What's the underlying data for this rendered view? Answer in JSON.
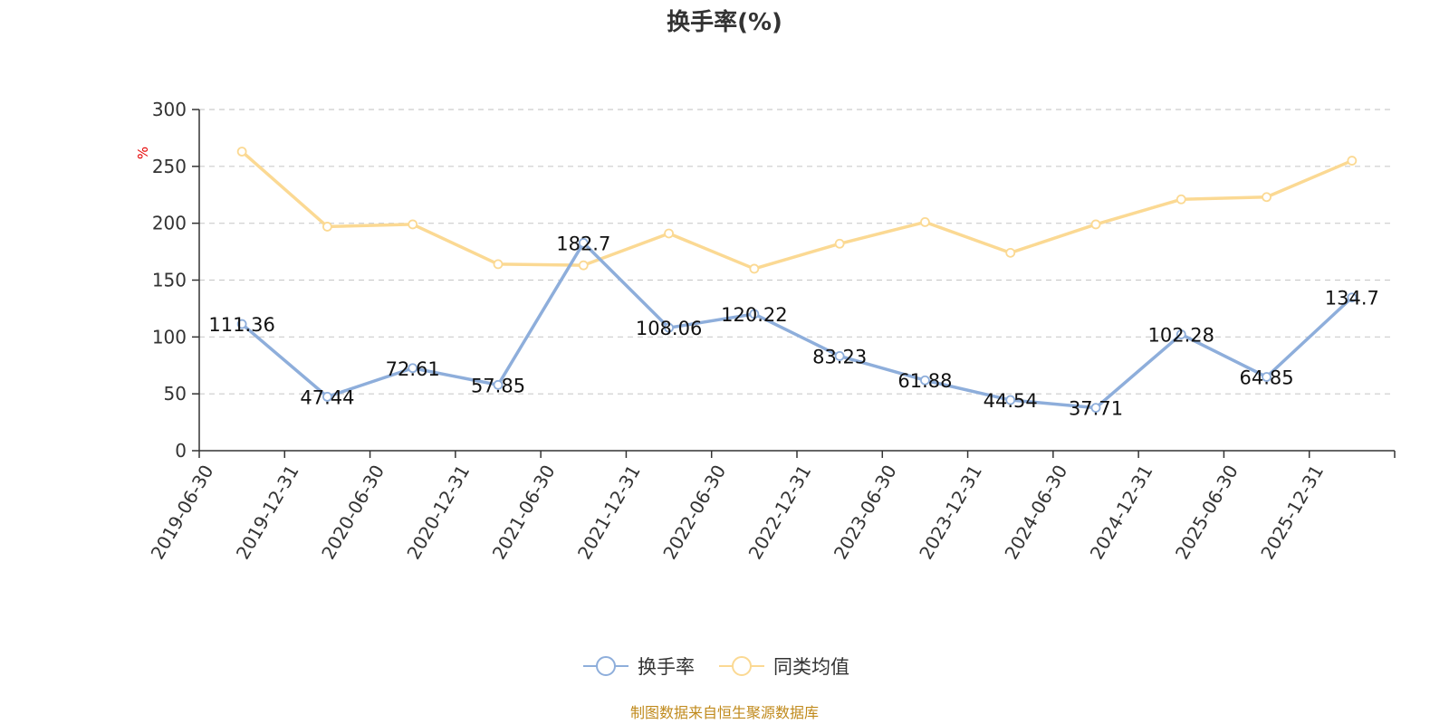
{
  "chart_data": {
    "type": "line",
    "title": "换手率(%)",
    "ylabel": "%",
    "ylim": [
      0,
      300
    ],
    "yticks": [
      0,
      50,
      100,
      150,
      200,
      250,
      300
    ],
    "grid": true,
    "legend_position": "bottom-center",
    "categories": [
      "2019-06-30",
      "2019-12-31",
      "2020-06-30",
      "2020-12-31",
      "2021-06-30",
      "2021-12-31",
      "2022-06-30",
      "2022-12-31",
      "2023-06-30",
      "2023-12-31",
      "2024-06-30",
      "2024-12-31",
      "2025-06-30",
      "2025-12-31"
    ],
    "series": [
      {
        "name": "换手率",
        "color": "#8eaedb",
        "values": [
          111.36,
          47.44,
          72.61,
          57.85,
          182.7,
          108.06,
          120.22,
          83.23,
          61.88,
          44.54,
          37.71,
          102.28,
          64.85,
          134.7
        ],
        "labels": [
          "111.36",
          "47.44",
          "72.61",
          "57.85",
          "182.7",
          "108.06",
          "120.22",
          "83.23",
          "61.88",
          "44.54",
          "37.71",
          "102.28",
          "64.85",
          "134.7"
        ]
      },
      {
        "name": "同类均值",
        "color": "#fbd993",
        "values": [
          263,
          197,
          199,
          164,
          163,
          191,
          160,
          182,
          201,
          174,
          199,
          221,
          223,
          255
        ]
      }
    ],
    "source": "制图数据来自恒生聚源数据库"
  }
}
